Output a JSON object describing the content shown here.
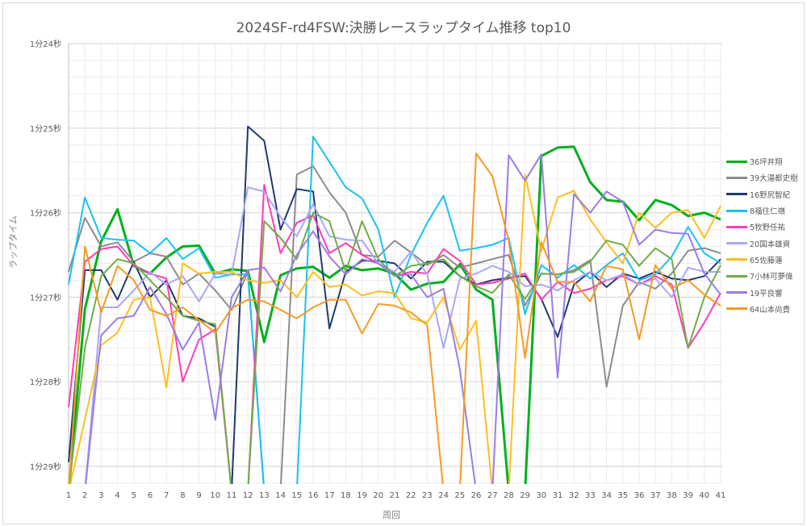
{
  "chart_data": {
    "type": "line",
    "title": "2024SF-rd4FSW:決勝レースラップタイム推移 top10",
    "xlabel": "周回",
    "ylabel": "ラップタイム",
    "y_inverted": true,
    "ylim": [
      84,
      89
    ],
    "y_unit": "seconds (84 = 1分24秒)",
    "y_ticks": [
      {
        "value": 84,
        "label": "1分24秒"
      },
      {
        "value": 85,
        "label": "1分25秒"
      },
      {
        "value": 86,
        "label": "1分26秒"
      },
      {
        "value": 87,
        "label": "1分27秒"
      },
      {
        "value": 88,
        "label": "1分28秒"
      },
      {
        "value": 89,
        "label": "1分29秒"
      }
    ],
    "x": [
      1,
      2,
      3,
      4,
      5,
      6,
      7,
      8,
      9,
      10,
      11,
      12,
      13,
      14,
      15,
      16,
      17,
      18,
      19,
      20,
      21,
      22,
      23,
      24,
      25,
      26,
      27,
      28,
      29,
      30,
      31,
      32,
      33,
      34,
      35,
      36,
      37,
      38,
      39,
      40,
      41
    ],
    "grid": true,
    "legend_position": "right",
    "series": [
      {
        "name": "36坪井翔",
        "color": "#00b01c",
        "width": 3,
        "values": [
          89.3,
          87.14,
          86.34,
          85.96,
          86.63,
          86.72,
          86.53,
          86.4,
          86.39,
          86.72,
          86.67,
          86.69,
          87.53,
          86.74,
          86.66,
          86.64,
          86.77,
          86.63,
          86.68,
          86.66,
          86.72,
          86.91,
          86.84,
          86.82,
          86.61,
          86.91,
          87.03,
          89.3,
          89.3,
          85.33,
          85.23,
          85.22,
          85.64,
          85.85,
          85.87,
          86.09,
          85.85,
          85.91,
          86.04,
          86.0,
          86.08
        ]
      },
      {
        "name": "39大湯都史樹",
        "color": "#8c8c8c",
        "width": 2,
        "values": [
          86.7,
          86.06,
          86.4,
          86.35,
          86.58,
          86.48,
          86.52,
          86.85,
          86.72,
          86.92,
          87.15,
          86.7,
          89.3,
          89.3,
          85.55,
          85.45,
          85.76,
          86.0,
          86.5,
          86.52,
          86.33,
          86.47,
          86.62,
          86.5,
          86.65,
          86.6,
          86.55,
          86.5,
          87.1,
          86.72,
          86.73,
          86.68,
          86.56,
          88.06,
          87.1,
          86.82,
          86.9,
          86.72,
          86.45,
          86.42,
          86.48
        ]
      },
      {
        "name": "16野尻智紀",
        "color": "#1f3a6e",
        "width": 2,
        "values": [
          88.95,
          86.68,
          86.68,
          87.03,
          86.58,
          87.0,
          86.8,
          87.22,
          87.25,
          87.35,
          89.3,
          84.98,
          85.15,
          86.2,
          85.72,
          85.75,
          87.37,
          86.7,
          86.57,
          86.57,
          86.6,
          86.78,
          86.58,
          86.58,
          86.75,
          86.85,
          86.8,
          86.77,
          86.75,
          87.02,
          87.47,
          86.85,
          86.7,
          86.88,
          86.72,
          86.78,
          86.7,
          86.78,
          86.8,
          86.75,
          86.55
        ]
      },
      {
        "name": "8福住仁嶺",
        "color": "#19c3f0",
        "width": 2,
        "values": [
          86.85,
          85.82,
          86.3,
          86.32,
          86.33,
          86.48,
          86.3,
          86.55,
          86.42,
          86.77,
          86.73,
          86.73,
          89.3,
          89.3,
          89.3,
          85.1,
          85.4,
          85.7,
          85.83,
          86.2,
          87.0,
          86.5,
          86.12,
          85.8,
          86.45,
          86.42,
          86.38,
          86.3,
          87.2,
          86.62,
          86.77,
          86.62,
          86.78,
          86.62,
          86.48,
          86.8,
          86.73,
          86.52,
          86.17,
          86.48,
          86.6
        ]
      },
      {
        "name": "5牧野任祐",
        "color": "#ff3cb4",
        "width": 2,
        "values": [
          88.3,
          86.58,
          86.43,
          86.4,
          86.63,
          86.72,
          86.78,
          88.0,
          87.5,
          87.38,
          89.3,
          89.3,
          85.67,
          86.48,
          86.12,
          86.03,
          86.48,
          86.36,
          86.5,
          86.6,
          86.75,
          86.7,
          86.72,
          86.43,
          86.57,
          86.85,
          86.83,
          86.78,
          86.72,
          87.03,
          86.82,
          86.95,
          86.9,
          86.8,
          86.75,
          86.85,
          86.75,
          86.85,
          87.6,
          87.3,
          86.95
        ]
      },
      {
        "name": "20国本雄資",
        "color": "#a8a8f5",
        "width": 2,
        "values": [
          89.3,
          89.3,
          87.12,
          87.12,
          86.92,
          86.7,
          86.85,
          86.75,
          87.05,
          86.72,
          86.73,
          85.7,
          85.75,
          86.05,
          86.28,
          85.9,
          86.28,
          86.32,
          86.33,
          86.6,
          86.7,
          86.46,
          86.73,
          87.6,
          86.78,
          86.72,
          86.63,
          86.7,
          86.87,
          86.85,
          86.92,
          86.8,
          86.7,
          86.8,
          86.73,
          86.85,
          86.78,
          87.0,
          86.65,
          86.7,
          86.7
        ]
      },
      {
        "name": "65佐藤蓮",
        "color": "#ffbe1e",
        "width": 2,
        "values": [
          89.3,
          88.45,
          87.57,
          87.42,
          87.03,
          87.0,
          88.07,
          86.6,
          86.72,
          86.7,
          86.7,
          86.8,
          86.83,
          86.8,
          87.0,
          86.7,
          86.88,
          86.85,
          86.98,
          86.93,
          86.95,
          87.25,
          87.3,
          87.0,
          87.62,
          87.28,
          89.3,
          89.3,
          85.55,
          86.45,
          85.82,
          85.74,
          86.08,
          86.35,
          86.6,
          86.0,
          86.18,
          86.0,
          85.97,
          86.3,
          85.92
        ]
      },
      {
        "name": "7小林可夢偉",
        "color": "#70ad47",
        "width": 2,
        "values": [
          89.3,
          87.6,
          86.75,
          86.55,
          86.6,
          86.8,
          87.0,
          87.22,
          87.28,
          87.32,
          89.3,
          89.3,
          86.1,
          86.3,
          86.55,
          86.0,
          86.1,
          86.7,
          86.1,
          86.55,
          86.75,
          86.63,
          86.6,
          86.55,
          86.75,
          86.87,
          86.95,
          86.73,
          87.02,
          86.72,
          86.73,
          86.7,
          86.58,
          86.33,
          86.38,
          86.63,
          86.42,
          86.55,
          87.6,
          87.0,
          86.62
        ]
      },
      {
        "name": "19平良響",
        "color": "#9b7de6",
        "width": 2,
        "values": [
          89.3,
          89.3,
          87.45,
          87.25,
          87.22,
          86.88,
          87.2,
          87.62,
          87.3,
          88.45,
          87.0,
          86.68,
          86.65,
          86.93,
          86.5,
          86.22,
          86.52,
          86.73,
          86.55,
          86.6,
          86.75,
          86.73,
          87.0,
          86.9,
          87.85,
          89.3,
          89.3,
          85.32,
          85.62,
          85.31,
          87.95,
          85.78,
          86.0,
          85.75,
          85.87,
          86.38,
          86.2,
          86.24,
          86.25,
          86.72,
          86.97
        ]
      },
      {
        "name": "64山本尚貴",
        "color": "#f59a23",
        "width": 2,
        "values": [
          89.3,
          86.4,
          87.18,
          86.63,
          86.8,
          87.15,
          87.22,
          87.12,
          87.27,
          87.42,
          87.13,
          87.03,
          87.05,
          87.15,
          87.25,
          87.12,
          87.03,
          87.03,
          87.43,
          87.08,
          87.1,
          87.18,
          87.33,
          89.3,
          89.3,
          85.3,
          85.57,
          86.33,
          87.72,
          86.35,
          86.82,
          86.82,
          87.05,
          86.63,
          86.67,
          87.5,
          86.62,
          86.9,
          86.8,
          86.97,
          87.1
        ]
      }
    ]
  }
}
